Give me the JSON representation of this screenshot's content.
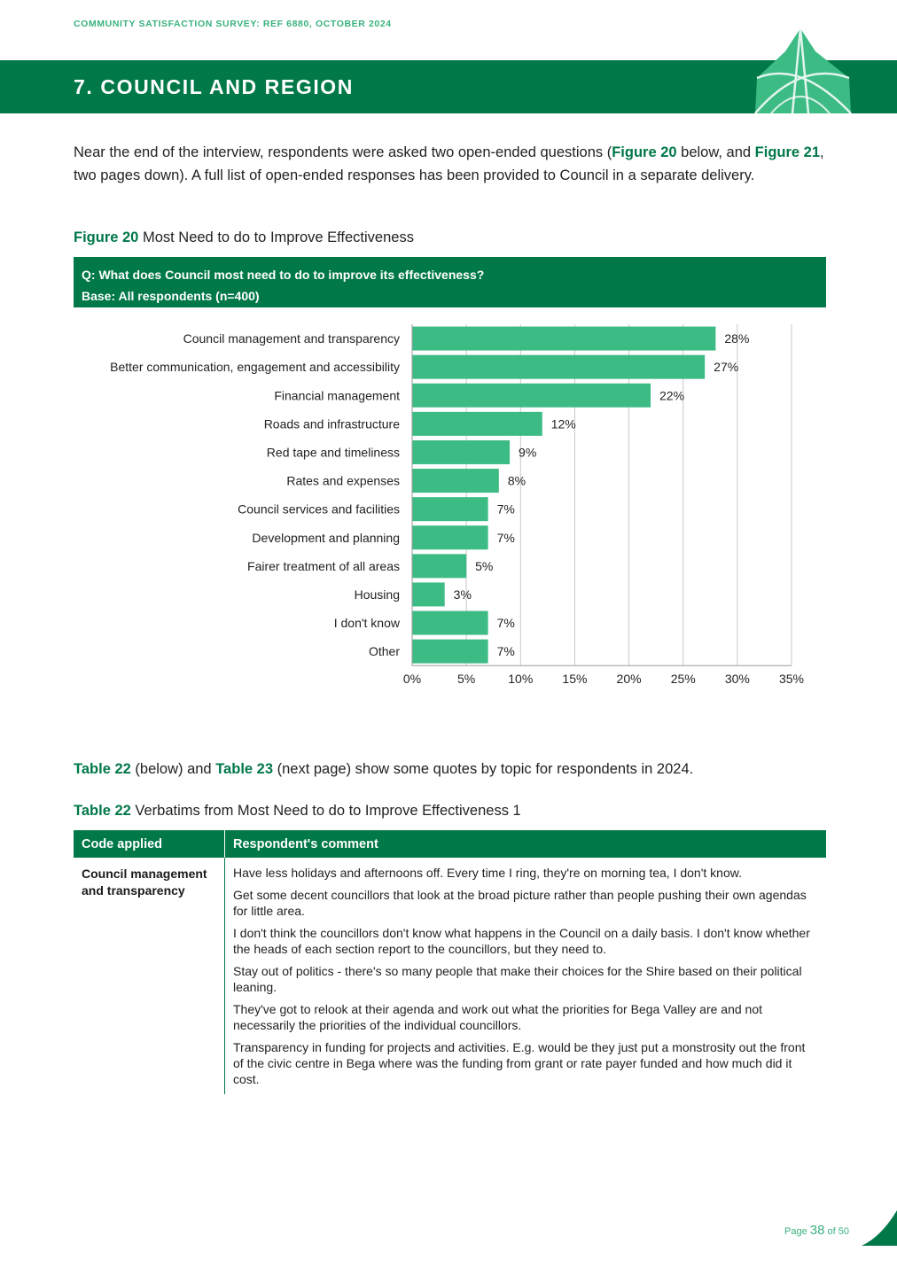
{
  "header": {
    "running_title": "COMMUNITY SATISFACTION SURVEY: REF 6880, OCTOBER 2024",
    "section_title": "7. COUNCIL AND REGION"
  },
  "intro": {
    "p1": "Near the end of the interview, respondents were asked two open-ended questions (",
    "fig20": "Figure 20",
    "p2": " below, and ",
    "fig21": "Figure 21",
    "p3": ", two pages down). A full list of open-ended responses has been provided to Council in a separate delivery."
  },
  "figure": {
    "label": "Figure 20",
    "title": " Most Need to do to Improve Effectiveness",
    "question": "Q: What does Council most need to do to improve its effectiveness?",
    "base": "Base: All respondents (n=400)"
  },
  "colors": {
    "brand_green": "#007848",
    "bar_green": "#3dbb85",
    "accent_light": "#3ab27f"
  },
  "chart_data": {
    "type": "bar",
    "orientation": "horizontal",
    "categories": [
      "Council management and transparency",
      "Better communication, engagement and accessibility",
      "Financial management",
      "Roads and infrastructure",
      "Red tape and timeliness",
      "Rates and expenses",
      "Council services and facilities",
      "Development and planning",
      "Fairer treatment of all areas",
      "Housing",
      "I don't know",
      "Other"
    ],
    "values": [
      28,
      27,
      22,
      12,
      9,
      8,
      7,
      7,
      5,
      3,
      7,
      7
    ],
    "value_labels": [
      "28%",
      "27%",
      "22%",
      "12%",
      "9%",
      "8%",
      "7%",
      "7%",
      "5%",
      "3%",
      "7%",
      "7%"
    ],
    "xlim": [
      0,
      35
    ],
    "x_ticks": [
      "0%",
      "5%",
      "10%",
      "15%",
      "20%",
      "25%",
      "30%",
      "35%"
    ],
    "grid": true,
    "legend": "none"
  },
  "sentence": {
    "t22": "Table 22",
    "s1": " (below) and ",
    "t23": "Table 23",
    "s2": " (next page) show some quotes by topic for respondents in 2024."
  },
  "table": {
    "caption_label": "Table 22",
    "caption_title": " Verbatims from Most Need to do to Improve Effectiveness 1",
    "headers": [
      "Code applied",
      "Respondent's comment"
    ],
    "code": "Council management and transparency",
    "quotes": [
      "Have less holidays and afternoons off. Every time I ring, they're on morning tea, I don't know.",
      "Get some decent councillors that look at the broad picture rather than people pushing their own agendas for little area.",
      "I don't think the councillors don't know what happens in the Council on a daily basis. I don't know whether the heads of each section report to the councillors, but they need to.",
      "Stay out of politics - there's so many people that make their choices for the Shire based on their political leaning.",
      "They've got to relook at their agenda and work out what the priorities for Bega Valley are and not necessarily the priorities of the individual councillors.",
      "Transparency in funding for projects and activities. E.g. would be they just put a monstrosity out the front of the civic centre in Bega where was the funding from grant or rate payer funded and how much did it cost."
    ]
  },
  "footer": {
    "page_word": "Page ",
    "page_num": "38",
    "of_text": " of 50"
  }
}
